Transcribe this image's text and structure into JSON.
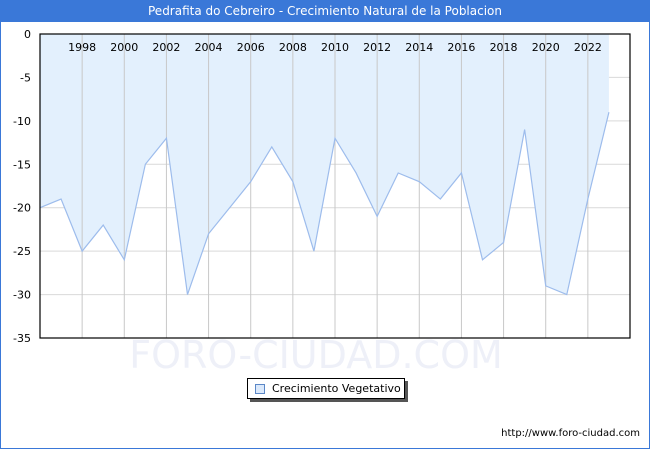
{
  "header": {
    "title": "Pedrafita do Cebreiro - Crecimiento Natural de la Poblacion"
  },
  "legend": {
    "label": "Crecimiento Vegetativo"
  },
  "footer": {
    "url": "http://www.foro-ciudad.com"
  },
  "watermark": "FORO-CIUDAD.COM",
  "colors": {
    "header": "#3a78d8",
    "fill": "#e3f0fd",
    "line": "#9dbcec",
    "grid": "#d9d9d9",
    "vgrid": "#c8c8c8"
  },
  "chart_data": {
    "type": "area",
    "title": "Pedrafita do Cebreiro - Crecimiento Natural de la Poblacion",
    "xlabel": "",
    "ylabel": "",
    "x": [
      1996,
      1997,
      1998,
      1999,
      2000,
      2001,
      2002,
      2003,
      2004,
      2005,
      2006,
      2007,
      2008,
      2009,
      2010,
      2011,
      2012,
      2013,
      2014,
      2015,
      2016,
      2017,
      2018,
      2019,
      2020,
      2021,
      2022,
      2023
    ],
    "series": [
      {
        "name": "Crecimiento Vegetativo",
        "values": [
          -20,
          -19,
          -25,
          -22,
          -26,
          -15,
          -12,
          -30,
          -23,
          -20,
          -17,
          -13,
          -17,
          -25,
          -12,
          -16,
          -21,
          -16,
          -17,
          -19,
          -16,
          -26,
          -24,
          -11,
          -29,
          -30,
          -19,
          -9
        ]
      }
    ],
    "x_tick_labels": [
      "1998",
      "2000",
      "2002",
      "2004",
      "2006",
      "2008",
      "2010",
      "2012",
      "2014",
      "2016",
      "2018",
      "2020",
      "2022"
    ],
    "y_tick_labels": [
      "0",
      "-5",
      "-10",
      "-15",
      "-20",
      "-25",
      "-30",
      "-35"
    ],
    "ylim": [
      -35,
      0
    ],
    "xlim": [
      1996,
      2024
    ],
    "grid": true,
    "legend_position": "bottom"
  }
}
